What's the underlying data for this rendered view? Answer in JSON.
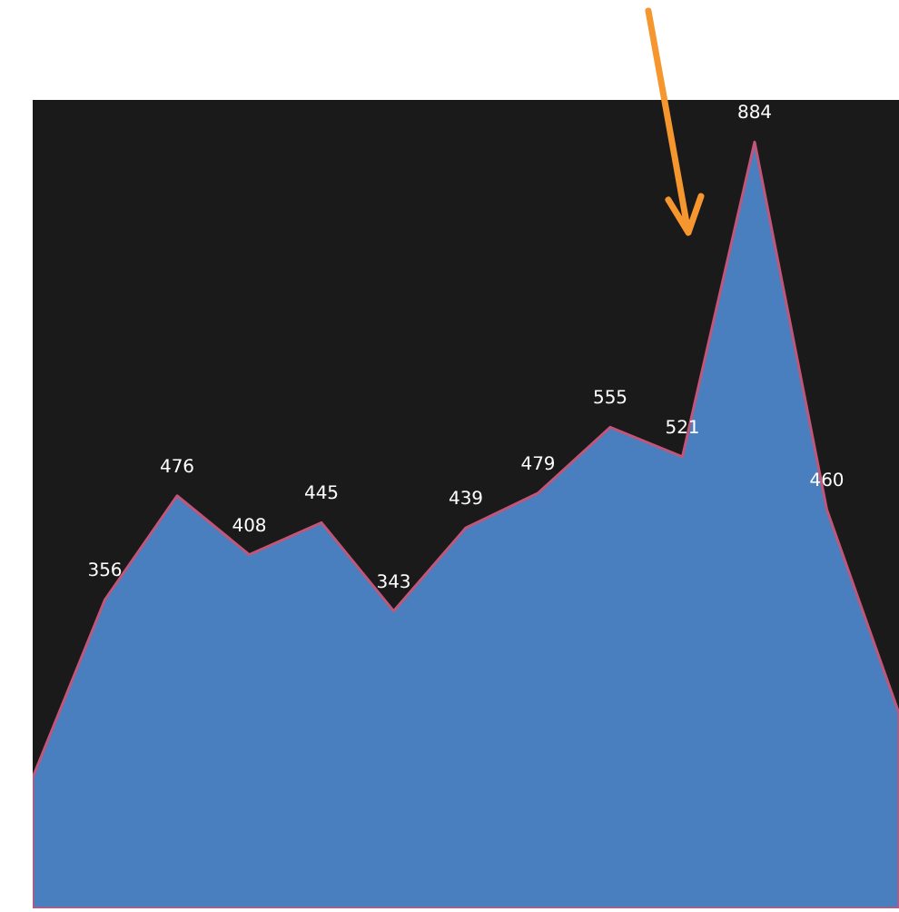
{
  "chart_data": {
    "type": "area",
    "categories": [
      null,
      null,
      null,
      null,
      null,
      null,
      null,
      null,
      null,
      null,
      null,
      null,
      null
    ],
    "values": [
      151,
      356,
      476,
      408,
      445,
      343,
      439,
      479,
      555,
      521,
      884,
      460,
      225
    ],
    "value_labels": [
      null,
      "356",
      "476",
      "408",
      "445",
      "343",
      "439",
      "479",
      "555",
      "521",
      "884",
      "460",
      null
    ],
    "color": "#4a7fbf"
  }
}
